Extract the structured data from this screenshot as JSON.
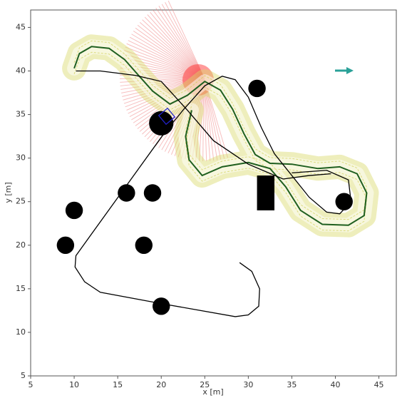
{
  "chart_data": {
    "type": "scatter",
    "xlabel": "x [m]",
    "ylabel": "y [m]",
    "xlim": [
      5,
      47
    ],
    "ylim": [
      5,
      47
    ],
    "xticks": [
      5,
      10,
      15,
      20,
      25,
      30,
      35,
      40,
      45
    ],
    "yticks": [
      5,
      10,
      15,
      20,
      25,
      30,
      35,
      40,
      45
    ],
    "obstacles": {
      "color": "#000000",
      "x": [
        20,
        31,
        16,
        19,
        10,
        9,
        18,
        20,
        41
      ],
      "y": [
        34,
        38,
        26,
        26,
        24,
        20,
        20,
        13,
        25
      ],
      "r": [
        1.4,
        1,
        1,
        1,
        1,
        1,
        1,
        1,
        1
      ]
    },
    "block": {
      "color": "#000000",
      "x": [
        31,
        33
      ],
      "y": [
        24,
        28
      ]
    },
    "trajectory": {
      "color": "#000000",
      "x": [
        29,
        30.4,
        31.3,
        31.2,
        30,
        28.5,
        20,
        13,
        11.2,
        10.1,
        10.2,
        20.3,
        22.5,
        25,
        27,
        28.5,
        30,
        31.5,
        33,
        35,
        37,
        39,
        40.5,
        41.8,
        41.5,
        39,
        35,
        null,
        10.2,
        13,
        17,
        20,
        23,
        26,
        30,
        34,
        37,
        39.5
      ],
      "y": [
        18,
        17,
        15,
        13,
        12,
        11.8,
        13.3,
        14.6,
        15.8,
        17.5,
        18.8,
        32.8,
        35.5,
        38.3,
        39.4,
        39,
        37,
        33.5,
        30.5,
        28,
        25.5,
        23.8,
        23.6,
        25,
        27.5,
        28.6,
        28.3,
        null,
        40,
        40,
        39.5,
        38.8,
        35.5,
        32,
        29.3,
        27.6,
        28,
        28.2
      ]
    },
    "reference": {
      "color": "#1f5f1f",
      "x": [
        10,
        10.6,
        12,
        14,
        15.8,
        17.3,
        19,
        21,
        23,
        25,
        26.8,
        28.2,
        29.5,
        30.8,
        32.5,
        35,
        38,
        40.5,
        42.5,
        43.6,
        43.3,
        41.5,
        38.5,
        36,
        34.3,
        32.5,
        30,
        27,
        24.7,
        23.2,
        22.8,
        23.5
      ],
      "y": [
        40.3,
        42,
        42.8,
        42.6,
        41.3,
        39.6,
        37.7,
        36.2,
        37.2,
        38.8,
        37.8,
        35.6,
        32.8,
        30.4,
        29.4,
        29.3,
        28.8,
        29,
        28.2,
        26,
        23.4,
        22.3,
        22.4,
        24,
        26.7,
        28.8,
        29.5,
        29,
        28,
        29.8,
        32.5,
        35.5
      ]
    },
    "heading": {
      "color": "#2aa198"
    }
  }
}
